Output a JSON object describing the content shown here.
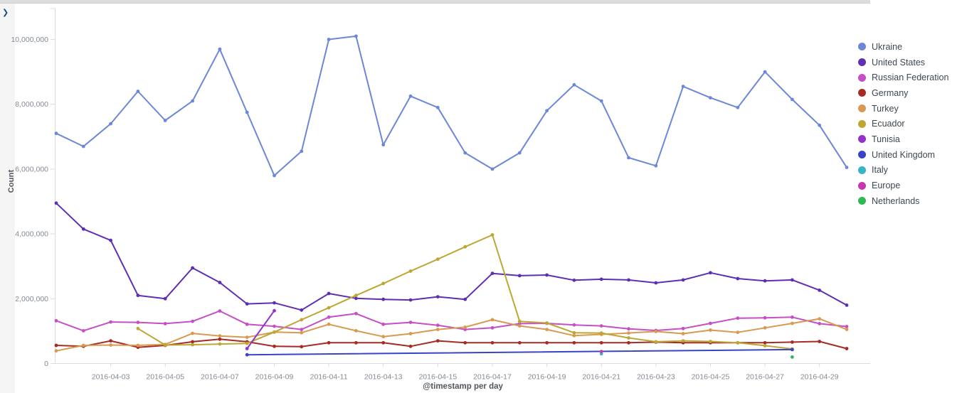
{
  "panel": {
    "expand_chevron": "❯"
  },
  "chart_data": {
    "type": "line",
    "title": "",
    "xlabel": "@timestamp per day",
    "ylabel": "Count",
    "ylim": [
      0,
      10950000
    ],
    "grid": false,
    "legend_position": "right",
    "y_ticks": [
      {
        "label": "0",
        "value": 0
      },
      {
        "label": "2,000,000",
        "value": 2000000
      },
      {
        "label": "4,000,000",
        "value": 4000000
      },
      {
        "label": "6,000,000",
        "value": 6000000
      },
      {
        "label": "8,000,000",
        "value": 8000000
      },
      {
        "label": "10,000,000",
        "value": 10000000
      }
    ],
    "x_dates": [
      "2016-04-01",
      "2016-04-02",
      "2016-04-03",
      "2016-04-04",
      "2016-04-05",
      "2016-04-06",
      "2016-04-07",
      "2016-04-08",
      "2016-04-09",
      "2016-04-10",
      "2016-04-11",
      "2016-04-12",
      "2016-04-13",
      "2016-04-14",
      "2016-04-15",
      "2016-04-16",
      "2016-04-17",
      "2016-04-18",
      "2016-04-19",
      "2016-04-20",
      "2016-04-21",
      "2016-04-22",
      "2016-04-23",
      "2016-04-24",
      "2016-04-25",
      "2016-04-26",
      "2016-04-27",
      "2016-04-28",
      "2016-04-29",
      "2016-04-30"
    ],
    "x_tick_labels": [
      "2016-04-03",
      "2016-04-05",
      "2016-04-07",
      "2016-04-09",
      "2016-04-11",
      "2016-04-13",
      "2016-04-15",
      "2016-04-17",
      "2016-04-19",
      "2016-04-21",
      "2016-04-23",
      "2016-04-25",
      "2016-04-27",
      "2016-04-29"
    ],
    "series": [
      {
        "name": "Ukraine",
        "color": "#6c87d8",
        "values": [
          7100000,
          6700000,
          7400000,
          8400000,
          7500000,
          8100000,
          9700000,
          7750000,
          5800000,
          6550000,
          10000000,
          10100000,
          6750000,
          8250000,
          7900000,
          6500000,
          6000000,
          6500000,
          7800000,
          8600000,
          8100000,
          6350000,
          6100000,
          8550000,
          8200000,
          7900000,
          9000000,
          8150000,
          7350000,
          6050000
        ]
      },
      {
        "name": "United States",
        "color": "#5e2fb3",
        "values": [
          4950000,
          4150000,
          3800000,
          2100000,
          2000000,
          2950000,
          2500000,
          1840000,
          1870000,
          1650000,
          2160000,
          2010000,
          1980000,
          1960000,
          2060000,
          1980000,
          2780000,
          2710000,
          2730000,
          2570000,
          2600000,
          2580000,
          2490000,
          2580000,
          2800000,
          2620000,
          2550000,
          2580000,
          2260000,
          1800000
        ]
      },
      {
        "name": "Russian Federation",
        "color": "#c54fc5",
        "values": [
          1320000,
          1010000,
          1280000,
          1270000,
          1230000,
          1300000,
          1620000,
          1210000,
          1150000,
          1050000,
          1430000,
          1540000,
          1210000,
          1270000,
          1180000,
          1050000,
          1100000,
          1230000,
          1240000,
          1190000,
          1160000,
          1070000,
          1020000,
          1080000,
          1240000,
          1400000,
          1410000,
          1430000,
          1230000,
          1140000
        ]
      },
      {
        "name": "Germany",
        "color": "#a42c25",
        "values": [
          560000,
          530000,
          700000,
          500000,
          560000,
          670000,
          750000,
          670000,
          530000,
          520000,
          640000,
          640000,
          640000,
          530000,
          700000,
          640000,
          640000,
          640000,
          640000,
          640000,
          640000,
          640000,
          660000,
          640000,
          640000,
          640000,
          640000,
          660000,
          680000,
          460000
        ]
      },
      {
        "name": "Turkey",
        "color": "#d89a51",
        "values": [
          390000,
          560000,
          570000,
          560000,
          590000,
          930000,
          850000,
          810000,
          970000,
          950000,
          1210000,
          1010000,
          830000,
          920000,
          1050000,
          1120000,
          1350000,
          1160000,
          1050000,
          860000,
          900000,
          940000,
          990000,
          920000,
          1030000,
          960000,
          1100000,
          1240000,
          1380000,
          1050000
        ]
      },
      {
        "name": "Ecuador",
        "color": "#bda732",
        "values": [
          null,
          null,
          null,
          1080000,
          570000,
          580000,
          600000,
          620000,
          970000,
          1350000,
          1720000,
          2100000,
          2470000,
          2850000,
          3220000,
          3600000,
          3970000,
          1300000,
          1250000,
          950000,
          940000,
          790000,
          670000,
          700000,
          680000,
          640000,
          550000,
          450000,
          null,
          null
        ]
      },
      {
        "name": "Tunisia",
        "color": "#9531cb",
        "values": [
          null,
          null,
          null,
          null,
          null,
          null,
          null,
          460000,
          1630000,
          null,
          null,
          null,
          null,
          null,
          null,
          null,
          null,
          null,
          null,
          null,
          null,
          null,
          null,
          null,
          null,
          null,
          null,
          null,
          null,
          null
        ]
      },
      {
        "name": "United Kingdom",
        "color": "#3844c4",
        "values": [
          null,
          null,
          null,
          null,
          null,
          null,
          null,
          270000,
          null,
          null,
          null,
          null,
          null,
          null,
          null,
          null,
          null,
          null,
          null,
          null,
          null,
          null,
          null,
          null,
          null,
          null,
          null,
          430000,
          null,
          null
        ]
      },
      {
        "name": "Italy",
        "color": "#38b4c7",
        "values": [
          null,
          null,
          null,
          null,
          null,
          null,
          null,
          null,
          null,
          null,
          null,
          null,
          null,
          null,
          null,
          null,
          null,
          null,
          null,
          null,
          300000,
          null,
          null,
          null,
          null,
          null,
          null,
          null,
          null,
          null
        ]
      },
      {
        "name": "Europe",
        "color": "#c637ad",
        "values": [
          null,
          null,
          null,
          null,
          null,
          null,
          null,
          null,
          null,
          null,
          null,
          null,
          null,
          null,
          null,
          null,
          null,
          null,
          null,
          null,
          370000,
          null,
          null,
          null,
          null,
          null,
          null,
          null,
          null,
          null
        ]
      },
      {
        "name": "Netherlands",
        "color": "#2fb853",
        "values": [
          null,
          null,
          null,
          null,
          null,
          null,
          null,
          null,
          null,
          null,
          null,
          null,
          null,
          null,
          null,
          null,
          null,
          null,
          null,
          null,
          null,
          null,
          null,
          null,
          null,
          null,
          null,
          200000,
          null,
          null
        ]
      }
    ]
  }
}
